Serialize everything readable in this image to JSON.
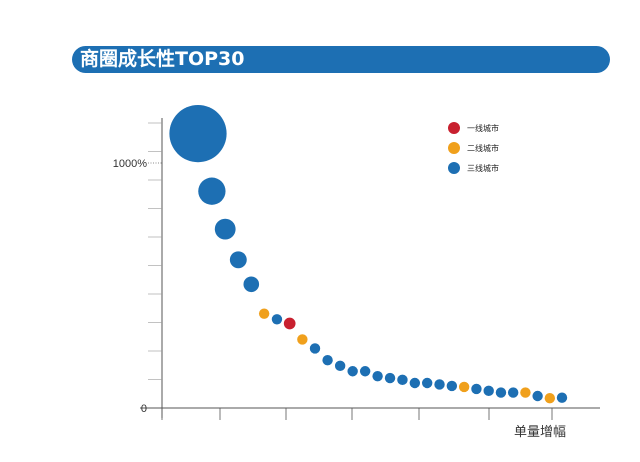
{
  "title": "商圈成长性TOP30",
  "colors": {
    "title_bar": "#1d6fb3",
    "tier1": "#c8202f",
    "tier2": "#f0a01c",
    "tier3": "#1d6fb3",
    "axis": "#555555"
  },
  "chart_data": {
    "type": "scatter",
    "title": "商圈成长性TOP30",
    "xlabel": "单量增幅",
    "ylabel": "",
    "y_ticks": [
      {
        "value": 0,
        "label": "0"
      },
      {
        "value": 1000,
        "label": "1000%"
      }
    ],
    "ylim": [
      0,
      1200
    ],
    "legend": {
      "position": "top-right",
      "entries": [
        {
          "name": "一线城市",
          "color": "#c8202f"
        },
        {
          "name": "二线城市",
          "color": "#f0a01c"
        },
        {
          "name": "三线城市",
          "color": "#1d6fb3"
        }
      ]
    },
    "points": [
      {
        "rank": 1,
        "value": 1120,
        "size": 4.4,
        "tier": 3
      },
      {
        "rank": 2,
        "value": 885,
        "size": 2.1,
        "tier": 3
      },
      {
        "rank": 3,
        "value": 730,
        "size": 1.6,
        "tier": 3
      },
      {
        "rank": 4,
        "value": 605,
        "size": 1.3,
        "tier": 3
      },
      {
        "rank": 5,
        "value": 505,
        "size": 1.2,
        "tier": 3
      },
      {
        "rank": 6,
        "value": 385,
        "size": 0.8,
        "tier": 2
      },
      {
        "rank": 7,
        "value": 362,
        "size": 0.8,
        "tier": 3
      },
      {
        "rank": 8,
        "value": 345,
        "size": 0.9,
        "tier": 1
      },
      {
        "rank": 9,
        "value": 280,
        "size": 0.8,
        "tier": 2
      },
      {
        "rank": 10,
        "value": 243,
        "size": 0.8,
        "tier": 3
      },
      {
        "rank": 11,
        "value": 195,
        "size": 0.8,
        "tier": 3
      },
      {
        "rank": 12,
        "value": 172,
        "size": 0.8,
        "tier": 3
      },
      {
        "rank": 13,
        "value": 150,
        "size": 0.8,
        "tier": 3
      },
      {
        "rank": 14,
        "value": 150,
        "size": 0.8,
        "tier": 3
      },
      {
        "rank": 15,
        "value": 130,
        "size": 0.8,
        "tier": 3
      },
      {
        "rank": 16,
        "value": 122,
        "size": 0.8,
        "tier": 3
      },
      {
        "rank": 17,
        "value": 115,
        "size": 0.8,
        "tier": 3
      },
      {
        "rank": 18,
        "value": 102,
        "size": 0.8,
        "tier": 3
      },
      {
        "rank": 19,
        "value": 102,
        "size": 0.8,
        "tier": 3
      },
      {
        "rank": 20,
        "value": 96,
        "size": 0.8,
        "tier": 3
      },
      {
        "rank": 21,
        "value": 90,
        "size": 0.8,
        "tier": 3
      },
      {
        "rank": 22,
        "value": 86,
        "size": 0.8,
        "tier": 2
      },
      {
        "rank": 23,
        "value": 78,
        "size": 0.8,
        "tier": 3
      },
      {
        "rank": 24,
        "value": 70,
        "size": 0.8,
        "tier": 3
      },
      {
        "rank": 25,
        "value": 63,
        "size": 0.8,
        "tier": 3
      },
      {
        "rank": 26,
        "value": 63,
        "size": 0.8,
        "tier": 3
      },
      {
        "rank": 27,
        "value": 63,
        "size": 0.8,
        "tier": 2
      },
      {
        "rank": 28,
        "value": 49,
        "size": 0.8,
        "tier": 3
      },
      {
        "rank": 29,
        "value": 40,
        "size": 0.8,
        "tier": 2
      },
      {
        "rank": 30,
        "value": 42,
        "size": 0.8,
        "tier": 3
      }
    ]
  }
}
